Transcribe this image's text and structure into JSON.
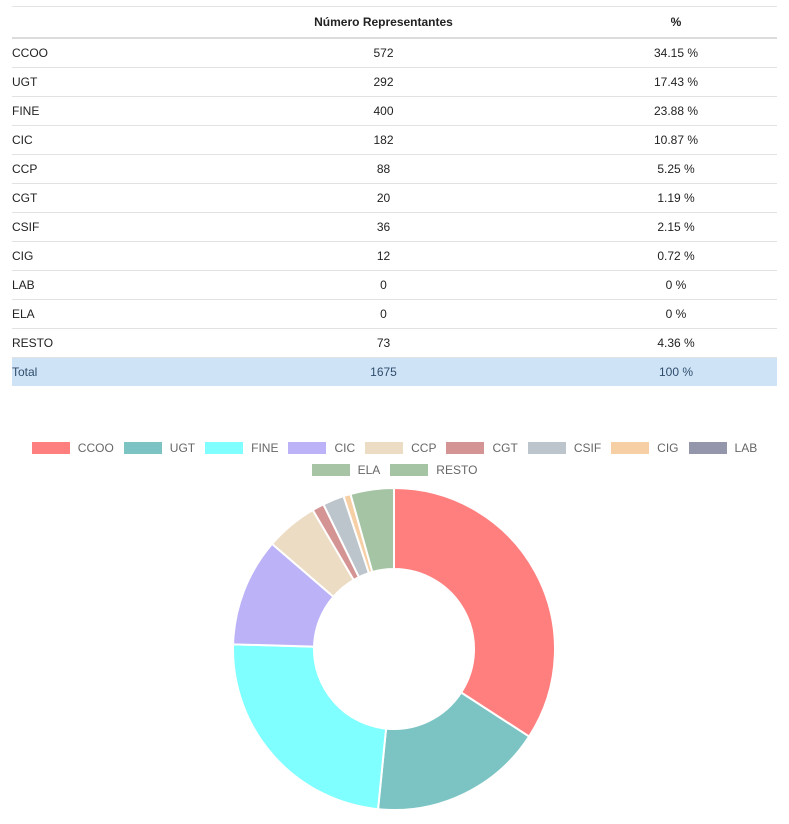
{
  "table": {
    "headers": [
      "",
      "Número Representantes",
      "%"
    ],
    "rows": [
      {
        "name": "CCOO",
        "count": "572",
        "pct": "34.15 %"
      },
      {
        "name": "UGT",
        "count": "292",
        "pct": "17.43 %"
      },
      {
        "name": "FINE",
        "count": "400",
        "pct": "23.88 %"
      },
      {
        "name": "CIC",
        "count": "182",
        "pct": "10.87 %"
      },
      {
        "name": "CCP",
        "count": "88",
        "pct": "5.25 %"
      },
      {
        "name": "CGT",
        "count": "20",
        "pct": "1.19 %"
      },
      {
        "name": "CSIF",
        "count": "36",
        "pct": "2.15 %"
      },
      {
        "name": "CIG",
        "count": "12",
        "pct": "0.72 %"
      },
      {
        "name": "LAB",
        "count": "0",
        "pct": "0 %"
      },
      {
        "name": "ELA",
        "count": "0",
        "pct": "0 %"
      },
      {
        "name": "RESTO",
        "count": "73",
        "pct": "4.36 %"
      }
    ],
    "total": {
      "name": "Total",
      "count": "1675",
      "pct": "100 %"
    }
  },
  "chart_data": {
    "type": "pie",
    "variant": "doughnut",
    "legend_position": "top",
    "categories": [
      "CCOO",
      "UGT",
      "FINE",
      "CIC",
      "CCP",
      "CGT",
      "CSIF",
      "CIG",
      "LAB",
      "ELA",
      "RESTO"
    ],
    "values": [
      572,
      292,
      400,
      182,
      88,
      20,
      36,
      12,
      0,
      0,
      73
    ],
    "colors": [
      "#ff7f7f",
      "#7cc4c4",
      "#7fffff",
      "#bcb2f7",
      "#ecdcc3",
      "#d49494",
      "#bcc4cc",
      "#f7cfa5",
      "#9496ac",
      "#a7c4a4",
      "#a4c4a4"
    ]
  }
}
